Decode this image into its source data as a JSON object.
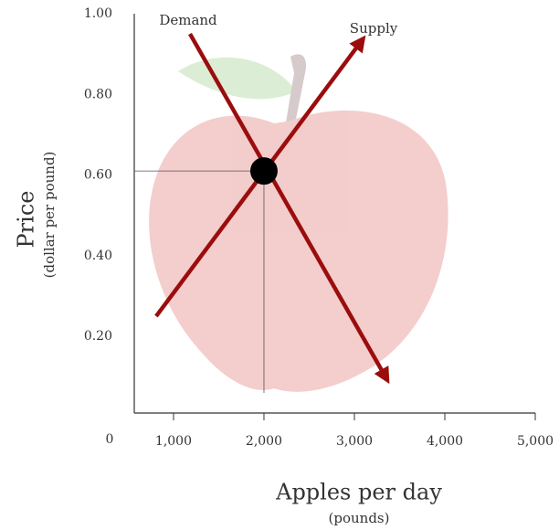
{
  "chart_data": {
    "type": "line",
    "y_label": "Price",
    "y_sublabel": "(dollar per pound)",
    "x_label": "Apples per day",
    "x_sublabel": "(pounds)",
    "origin_label": "0",
    "series": [
      {
        "name": "Demand",
        "color": "#9b0d0d",
        "x": [
          1182,
          3343
        ],
        "values": [
          0.95,
          0.1
        ]
      },
      {
        "name": "Supply",
        "color": "#9b0d0d",
        "x": [
          808,
          3071
        ],
        "values": [
          0.25,
          0.93
        ]
      }
    ],
    "equilibrium": {
      "x": 2000,
      "y": 0.61
    },
    "xlim": [
      566,
      5000
    ],
    "xticks": [
      {
        "value": 1000,
        "label": "1,000"
      },
      {
        "value": 2000,
        "label": "2,000"
      },
      {
        "value": 3000,
        "label": "3,000"
      },
      {
        "value": 4000,
        "label": "4,000"
      },
      {
        "value": 5000,
        "label": "5,000"
      }
    ],
    "ylim": [
      0.01,
      1.0
    ],
    "yticks": [
      {
        "value": 0.2,
        "label": "0.20"
      },
      {
        "value": 0.4,
        "label": "0.40"
      },
      {
        "value": 0.6,
        "label": "0.60"
      },
      {
        "value": 0.8,
        "label": "0.80"
      },
      {
        "value": 1.0,
        "label": "1.00"
      }
    ]
  }
}
